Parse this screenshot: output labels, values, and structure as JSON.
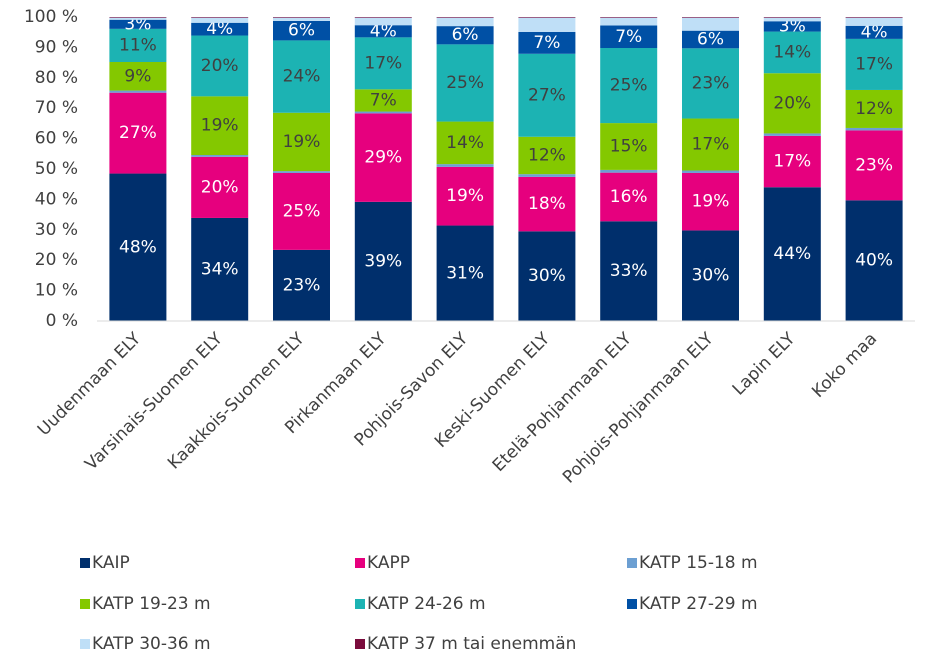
{
  "chart_data": {
    "type": "stacked_bar",
    "categories": [
      "Uudenmaan ELY",
      "Varsinais-Suomen ELY",
      "Kaakkois-Suomen ELY",
      "Pirkanmaan ELY",
      "Pohjois-Savon ELY",
      "Keski-Suomen ELY",
      "Etelä-Pohjanmaan ELY",
      "Pohjois-Pohjanmaan ELY",
      "Lapin ELY",
      "Koko maa"
    ],
    "series": [
      {
        "name": "KAIP",
        "color": "#002f6c",
        "values": [
          48.5,
          33.9,
          23.4,
          39.2,
          31.4,
          29.5,
          32.8,
          29.8,
          44.0,
          39.7
        ],
        "value_labels": [
          "48%",
          "34%",
          "23%",
          "39%",
          "31%",
          "30%",
          "33%",
          "30%",
          "44%",
          "40%"
        ]
      },
      {
        "name": "KAPP",
        "color": "#e6007e",
        "values": [
          26.6,
          20.1,
          25.3,
          29.1,
          19.3,
          17.9,
          16.0,
          18.9,
          16.9,
          23.0
        ],
        "value_labels": [
          "27%",
          "20%",
          "25%",
          "29%",
          "19%",
          "18%",
          "16%",
          "19%",
          "17%",
          "23%"
        ]
      },
      {
        "name": "KATP 15-18 m",
        "color": "#6c9fd2",
        "values": [
          0.7,
          0.6,
          0.6,
          0.6,
          0.9,
          0.9,
          0.9,
          0.8,
          0.8,
          0.8
        ]
      },
      {
        "name": "KATP 19-23 m",
        "color": "#84c800",
        "values": [
          9.4,
          19.3,
          19.2,
          7.3,
          14.0,
          12.3,
          15.4,
          17.1,
          19.8,
          12.5
        ],
        "value_labels": [
          "9%",
          "19%",
          "19%",
          "7%",
          "14%",
          "12%",
          "15%",
          "17%",
          "20%",
          "12%"
        ]
      },
      {
        "name": "KATP 24-26 m",
        "color": "#1cb3b3",
        "values": [
          10.9,
          20.0,
          23.8,
          17.1,
          25.4,
          27.3,
          24.7,
          23.1,
          13.7,
          16.8
        ],
        "value_labels": [
          "11%",
          "20%",
          "24%",
          "17%",
          "25%",
          "27%",
          "25%",
          "23%",
          "14%",
          "17%"
        ]
      },
      {
        "name": "KATP 27-29 m",
        "color": "#0050a5",
        "values": [
          3.0,
          4.2,
          6.4,
          4.0,
          6.0,
          7.2,
          7.4,
          5.8,
          3.4,
          4.3
        ],
        "value_labels": [
          "3%",
          "4%",
          "6%",
          "4%",
          "6%",
          "7%",
          "7%",
          "6%",
          "3%",
          "4%"
        ]
      },
      {
        "name": "KATP 30-36 m",
        "color": "#bfdff7",
        "values": [
          0.7,
          1.7,
          1.1,
          2.5,
          2.8,
          4.7,
          2.6,
          4.3,
          1.2,
          2.7
        ]
      },
      {
        "name": "KATP 37 m tai enemmän",
        "color": "#7a0b3c",
        "values": [
          0.2,
          0.2,
          0.2,
          0.2,
          0.2,
          0.2,
          0.2,
          0.2,
          0.2,
          0.2
        ]
      }
    ],
    "ylim": [
      0,
      100
    ],
    "yticks": [
      {
        "value": 0,
        "label": "0 %"
      },
      {
        "value": 10,
        "label": "10 %"
      },
      {
        "value": 20,
        "label": "20 %"
      },
      {
        "value": 30,
        "label": "30 %"
      },
      {
        "value": 40,
        "label": "40 %"
      },
      {
        "value": 50,
        "label": "50 %"
      },
      {
        "value": 60,
        "label": "60 %"
      },
      {
        "value": 70,
        "label": "70 %"
      },
      {
        "value": 80,
        "label": "80 %"
      },
      {
        "value": 90,
        "label": "90 %"
      },
      {
        "value": 100,
        "label": "100 %"
      }
    ],
    "grid": false,
    "legend": "bottom"
  }
}
